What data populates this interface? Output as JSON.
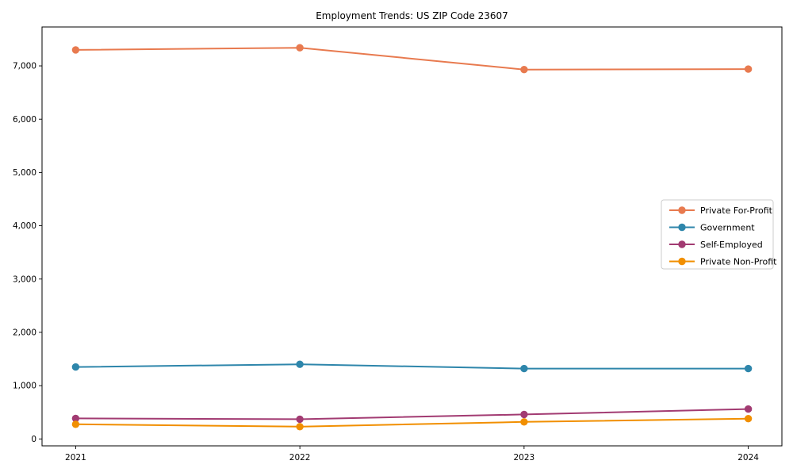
{
  "chart_data": {
    "type": "line",
    "title": "Employment Trends: US ZIP Code 23607",
    "xlabel": "",
    "ylabel": "",
    "categories": [
      2021,
      2022,
      2023,
      2024
    ],
    "x_tick_labels": [
      "2021",
      "2022",
      "2023",
      "2024"
    ],
    "series": [
      {
        "name": "Private For-Profit",
        "color": "#E87A4F",
        "values": [
          7300,
          7340,
          6930,
          6940
        ]
      },
      {
        "name": "Government",
        "color": "#2E86AB",
        "values": [
          1350,
          1400,
          1320,
          1320
        ]
      },
      {
        "name": "Self-Employed",
        "color": "#A23B72",
        "values": [
          385,
          370,
          460,
          560
        ]
      },
      {
        "name": "Private Non-Profit",
        "color": "#F18F01",
        "values": [
          275,
          230,
          320,
          380
        ]
      }
    ],
    "yticks": [
      0,
      1000,
      2000,
      3000,
      4000,
      5000,
      6000,
      7000
    ],
    "ytick_labels": [
      "0",
      "1,000",
      "2,000",
      "3,000",
      "4,000",
      "5,000",
      "6,000",
      "7,000"
    ],
    "ylim": [
      -130,
      7730
    ],
    "xlim": [
      2020.85,
      2024.15
    ],
    "grid": false,
    "legend": {
      "position": "center-right",
      "labels": [
        "Private For-Profit",
        "Government",
        "Self-Employed",
        "Private Non-Profit"
      ]
    },
    "marker": "circle",
    "frame_color": "#000000",
    "legend_border_color": "#cccccc"
  }
}
